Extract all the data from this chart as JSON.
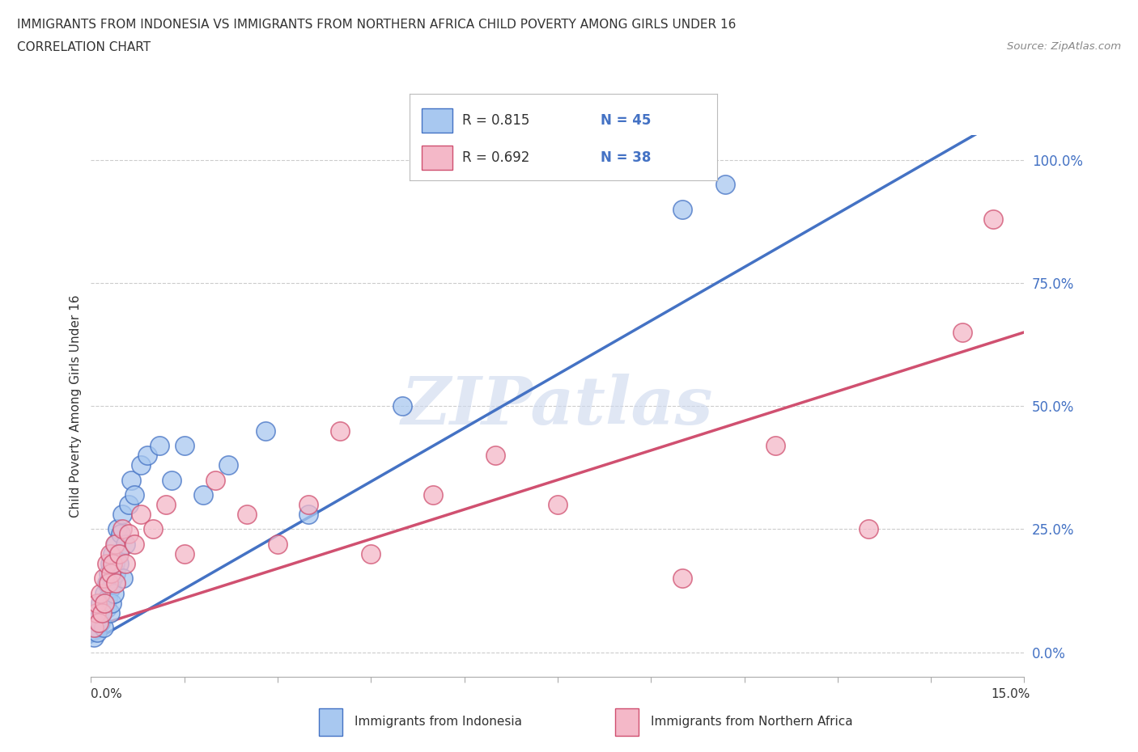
{
  "title_line1": "IMMIGRANTS FROM INDONESIA VS IMMIGRANTS FROM NORTHERN AFRICA CHILD POVERTY AMONG GIRLS UNDER 16",
  "title_line2": "CORRELATION CHART",
  "source_text": "Source: ZipAtlas.com",
  "ylabel": "Child Poverty Among Girls Under 16",
  "xlim": [
    0,
    15
  ],
  "ylim": [
    -5,
    105
  ],
  "ytick_values": [
    0,
    25,
    50,
    75,
    100
  ],
  "ytick_labels": [
    "0.0%",
    "25.0%",
    "50.0%",
    "75.0%",
    "100.0%"
  ],
  "xtick_values": [
    0,
    1.5,
    3.0,
    4.5,
    6.0,
    7.5,
    9.0,
    10.5,
    12.0,
    13.5,
    15.0
  ],
  "indonesia_color_fill": "#a8c8f0",
  "indonesia_color_edge": "#4472c4",
  "n_africa_color_fill": "#f4b8c8",
  "n_africa_color_edge": "#d05070",
  "line_blue": "#4472c4",
  "line_pink": "#d05070",
  "legend_R1": "R = 0.815",
  "legend_N1": "N = 45",
  "legend_R2": "R = 0.692",
  "legend_N2": "N = 38",
  "legend_label1": "Immigrants from Indonesia",
  "legend_label2": "Immigrants from Northern Africa",
  "watermark": "ZIPatlas",
  "background_color": "#ffffff",
  "grid_color": "#cccccc",
  "indonesia_x": [
    0.05,
    0.08,
    0.1,
    0.12,
    0.15,
    0.15,
    0.18,
    0.2,
    0.22,
    0.25,
    0.25,
    0.27,
    0.28,
    0.3,
    0.3,
    0.32,
    0.33,
    0.35,
    0.35,
    0.37,
    0.38,
    0.4,
    0.4,
    0.42,
    0.43,
    0.45,
    0.47,
    0.5,
    0.52,
    0.55,
    0.6,
    0.65,
    0.7,
    0.8,
    0.9,
    1.1,
    1.3,
    1.5,
    1.8,
    2.2,
    2.8,
    3.5,
    5.0,
    9.5,
    10.2
  ],
  "indonesia_y": [
    3,
    5,
    4,
    7,
    6,
    10,
    8,
    5,
    12,
    9,
    14,
    11,
    16,
    8,
    18,
    13,
    10,
    15,
    20,
    12,
    18,
    22,
    16,
    25,
    20,
    18,
    24,
    28,
    15,
    22,
    30,
    35,
    32,
    38,
    40,
    42,
    35,
    42,
    32,
    38,
    45,
    28,
    50,
    90,
    95
  ],
  "n_africa_x": [
    0.05,
    0.08,
    0.1,
    0.13,
    0.15,
    0.17,
    0.2,
    0.22,
    0.25,
    0.28,
    0.3,
    0.32,
    0.35,
    0.38,
    0.4,
    0.45,
    0.5,
    0.55,
    0.6,
    0.7,
    0.8,
    1.0,
    1.2,
    1.5,
    2.0,
    2.5,
    3.0,
    3.5,
    4.0,
    4.5,
    5.5,
    6.5,
    7.5,
    9.5,
    11.0,
    12.5,
    14.0,
    14.5
  ],
  "n_africa_y": [
    5,
    8,
    10,
    6,
    12,
    8,
    15,
    10,
    18,
    14,
    20,
    16,
    18,
    22,
    14,
    20,
    25,
    18,
    24,
    22,
    28,
    25,
    30,
    20,
    35,
    28,
    22,
    30,
    45,
    20,
    32,
    40,
    30,
    15,
    42,
    25,
    65,
    88
  ]
}
